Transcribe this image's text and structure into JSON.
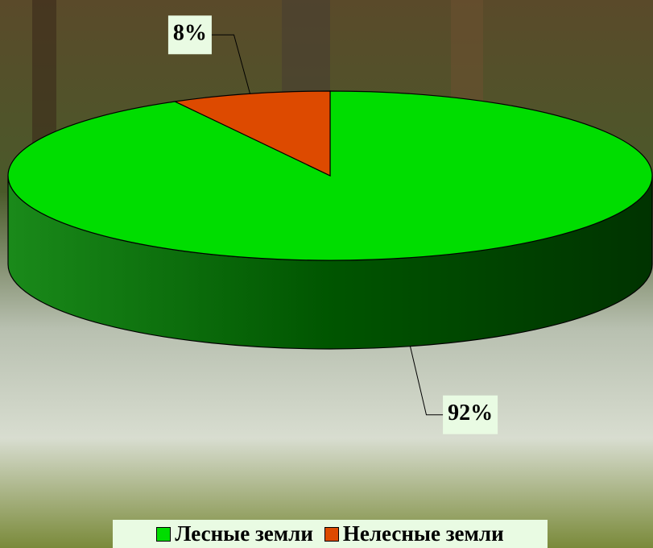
{
  "chart_data": {
    "type": "pie",
    "categories": [
      "Лесные земли",
      "Нелесные земли"
    ],
    "values": [
      92,
      8
    ],
    "value_labels": [
      "92%",
      "8%"
    ],
    "colors": [
      "#00dd00",
      "#dd4a00"
    ],
    "legend": "bottom"
  }
}
